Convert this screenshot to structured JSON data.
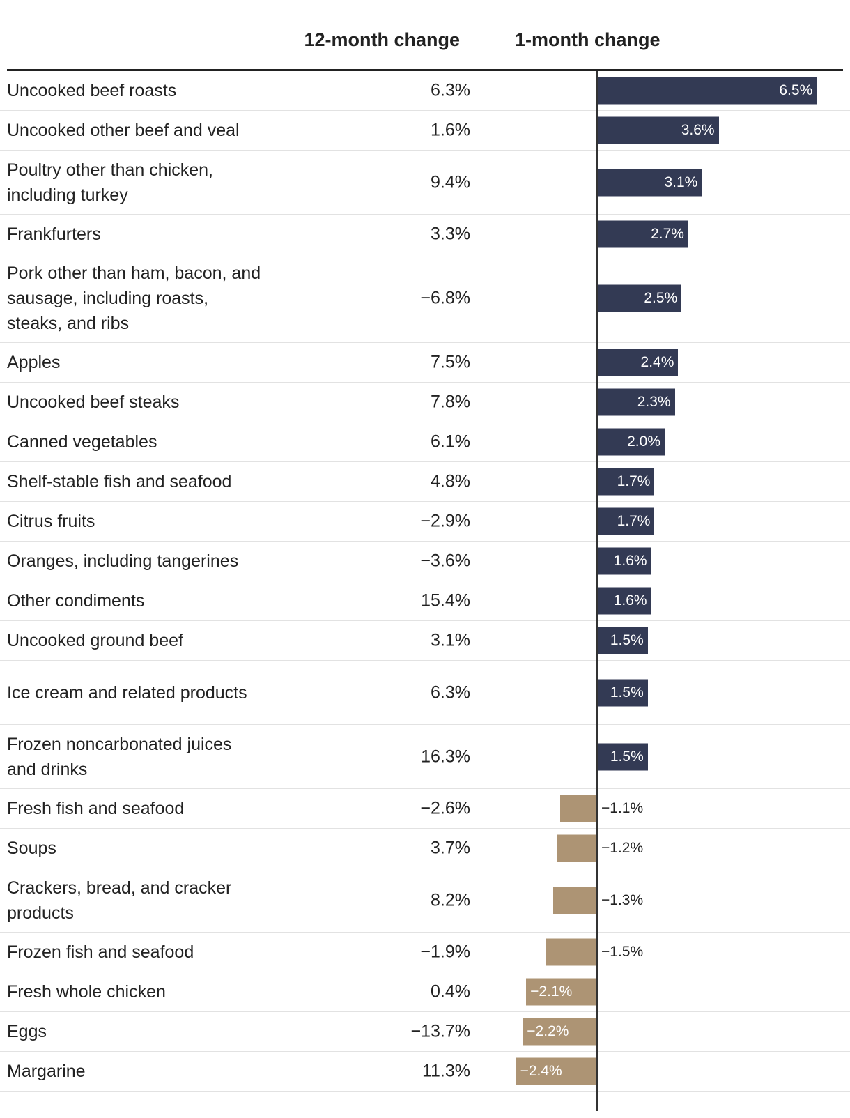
{
  "chart_data": {
    "type": "table",
    "columns": [
      "12-month change",
      "1-month change"
    ],
    "colors": {
      "positive": "#333a54",
      "negative": "#ad9474",
      "rule": "#222222"
    },
    "rows": [
      {
        "label": "Uncooked beef roasts",
        "m12": "6.3%",
        "m1": 6.5,
        "m1_label": "6.5%"
      },
      {
        "label": "Uncooked other beef and veal",
        "m12": "1.6%",
        "m1": 3.6,
        "m1_label": "3.6%"
      },
      {
        "label": "Poultry other than chicken, including turkey",
        "m12": "9.4%",
        "m1": 3.1,
        "m1_label": "3.1%"
      },
      {
        "label": "Frankfurters",
        "m12": "3.3%",
        "m1": 2.7,
        "m1_label": "2.7%"
      },
      {
        "label": "Pork other than ham, bacon, and sausage, including roasts, steaks, and ribs",
        "m12": "−6.8%",
        "m1": 2.5,
        "m1_label": "2.5%"
      },
      {
        "label": "Apples",
        "m12": "7.5%",
        "m1": 2.4,
        "m1_label": "2.4%"
      },
      {
        "label": "Uncooked beef steaks",
        "m12": "7.8%",
        "m1": 2.3,
        "m1_label": "2.3%"
      },
      {
        "label": "Canned vegetables",
        "m12": "6.1%",
        "m1": 2.0,
        "m1_label": "2.0%"
      },
      {
        "label": "Shelf-stable fish and seafood",
        "m12": "4.8%",
        "m1": 1.7,
        "m1_label": "1.7%"
      },
      {
        "label": "Citrus fruits",
        "m12": "−2.9%",
        "m1": 1.7,
        "m1_label": "1.7%"
      },
      {
        "label": "Oranges, including tangerines",
        "m12": "−3.6%",
        "m1": 1.6,
        "m1_label": "1.6%"
      },
      {
        "label": "Other condiments",
        "m12": "15.4%",
        "m1": 1.6,
        "m1_label": "1.6%"
      },
      {
        "label": "Uncooked ground beef",
        "m12": "3.1%",
        "m1": 1.5,
        "m1_label": "1.5%"
      },
      {
        "label": "Ice cream and related products",
        "m12": "6.3%",
        "m1": 1.5,
        "m1_label": "1.5%"
      },
      {
        "label": "Frozen noncarbonated juices and drinks",
        "m12": "16.3%",
        "m1": 1.5,
        "m1_label": "1.5%"
      },
      {
        "label": "Fresh fish and seafood",
        "m12": "−2.6%",
        "m1": -1.1,
        "m1_label": "−1.1%"
      },
      {
        "label": "Soups",
        "m12": "3.7%",
        "m1": -1.2,
        "m1_label": "−1.2%"
      },
      {
        "label": "Crackers, bread, and cracker products",
        "m12": "8.2%",
        "m1": -1.3,
        "m1_label": "−1.3%"
      },
      {
        "label": "Frozen fish and seafood",
        "m12": "−1.9%",
        "m1": -1.5,
        "m1_label": "−1.5%"
      },
      {
        "label": "Fresh whole chicken",
        "m12": "0.4%",
        "m1": -2.1,
        "m1_label": "−2.1%"
      },
      {
        "label": "Eggs",
        "m12": "−13.7%",
        "m1": -2.2,
        "m1_label": "−2.2%"
      },
      {
        "label": "Margarine",
        "m12": "11.3%",
        "m1": -2.4,
        "m1_label": "−2.4%"
      }
    ]
  }
}
